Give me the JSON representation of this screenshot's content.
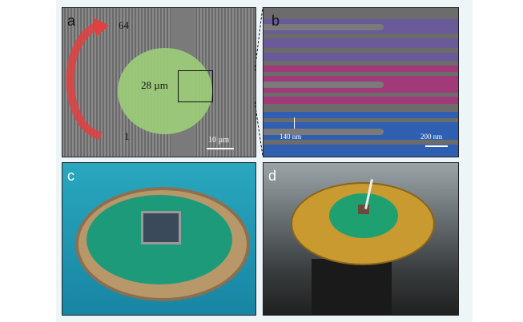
{
  "panels": {
    "a": {
      "label": "a",
      "top_index": "64",
      "bottom_index": "1",
      "diameter": "28 µm",
      "scale_bar": "10 µm"
    },
    "b": {
      "label": "b",
      "gap": "140 nm",
      "scale_bar": "200 nm"
    },
    "c": {
      "label": "c"
    },
    "d": {
      "label": "d"
    }
  },
  "colors": {
    "green": "#9ccc78",
    "purple": "#6a5a9a",
    "magenta": "#a03a78",
    "blue": "#2f5fb0",
    "arrow": "#e04040"
  }
}
